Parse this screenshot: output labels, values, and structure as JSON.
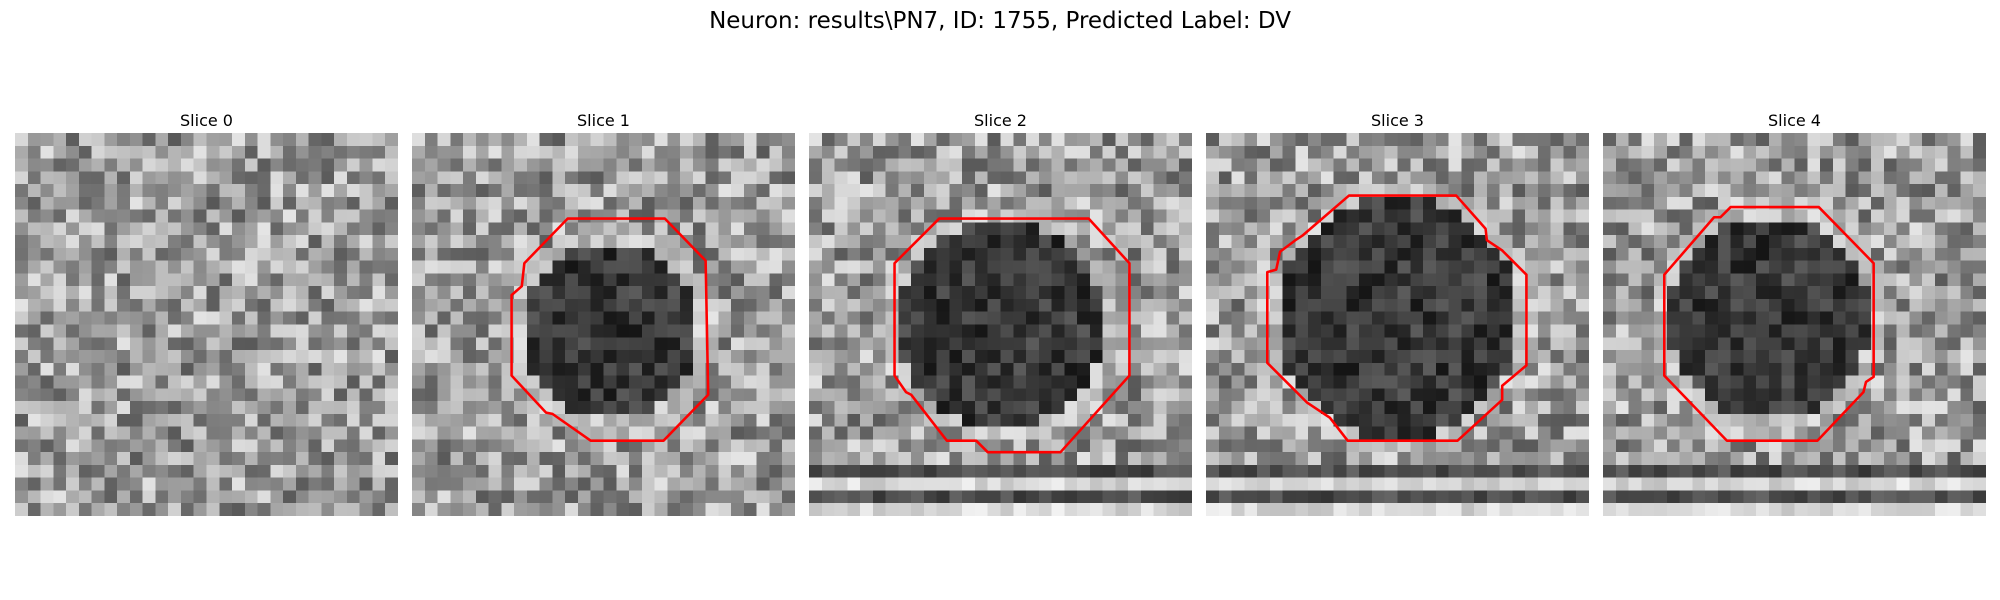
{
  "figure": {
    "title": "Neuron: results\\PN7, ID: 1755, Predicted Label: DV"
  },
  "colors": {
    "contour": "#ff0000",
    "background": "#ffffff"
  },
  "slices": [
    {
      "title": "Slice 0",
      "has_contour": false
    },
    {
      "title": "Slice 1",
      "has_contour": true
    },
    {
      "title": "Slice 2",
      "has_contour": true
    },
    {
      "title": "Slice 3",
      "has_contour": true
    },
    {
      "title": "Slice 4",
      "has_contour": true
    }
  ]
}
